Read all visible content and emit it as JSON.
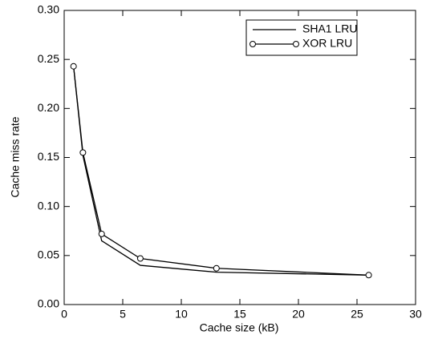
{
  "chart_data": {
    "type": "line",
    "xlabel": "Cache size (kB)",
    "ylabel": "Cache miss rate",
    "x": [
      0.8,
      1.6,
      3.2,
      6.5,
      13,
      26
    ],
    "series": [
      {
        "name": "SHA1 LRU",
        "color": "#000000",
        "marker": "none",
        "values": [
          0.243,
          0.152,
          0.065,
          0.04,
          0.033,
          0.03
        ]
      },
      {
        "name": "XOR LRU",
        "color": "#000000",
        "marker": "circle",
        "values": [
          0.243,
          0.155,
          0.072,
          0.047,
          0.037,
          0.03
        ]
      }
    ],
    "xlim": [
      0,
      30
    ],
    "xticks": [
      0,
      5,
      10,
      15,
      20,
      25,
      30
    ],
    "ylim": [
      0,
      0.3
    ],
    "yticks": [
      {
        "value": 0,
        "label": "0.00"
      },
      0.05,
      {
        "value": 0.1,
        "label": "0.10"
      },
      0.15,
      {
        "value": 0.2,
        "label": "0.20"
      },
      0.25,
      {
        "value": 0.3,
        "label": "0.30"
      }
    ],
    "legend": "upper right",
    "grid": false
  }
}
